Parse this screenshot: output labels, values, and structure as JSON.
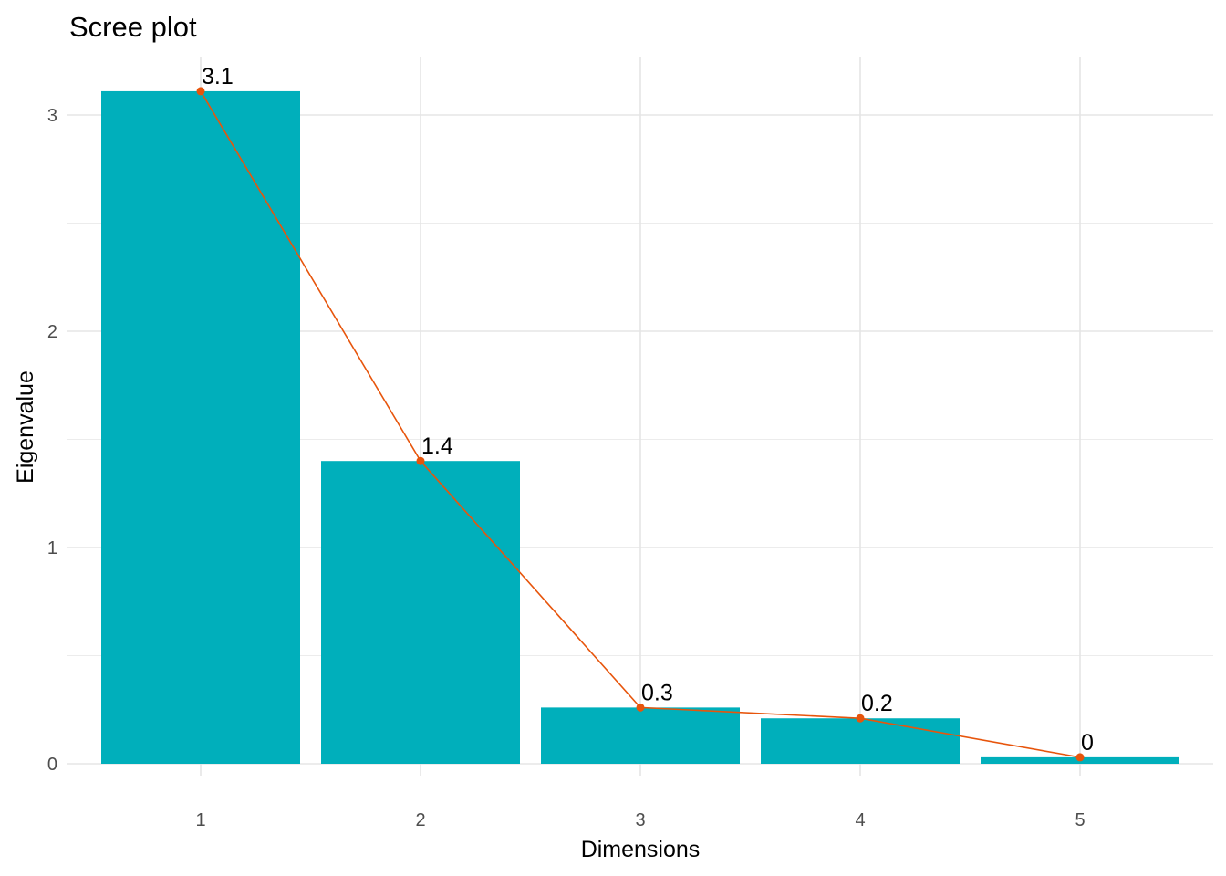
{
  "chart_data": {
    "type": "bar",
    "title": "Scree plot",
    "xlabel": "Dimensions",
    "ylabel": "Eigenvalue",
    "categories": [
      "1",
      "2",
      "3",
      "4",
      "5"
    ],
    "values": [
      3.11,
      1.4,
      0.26,
      0.21,
      0.03
    ],
    "data_labels": [
      "3.1",
      "1.4",
      "0.3",
      "0.2",
      "0"
    ],
    "line_overlay": true,
    "ylim": [
      0,
      3.2
    ],
    "yticks": [
      0,
      1,
      2,
      3
    ],
    "ytick_labels": [
      "0",
      "1",
      "2",
      "3"
    ],
    "grid": true,
    "bar_color": "#00AFBB",
    "line_color": "#E7550C",
    "legend": "none"
  }
}
